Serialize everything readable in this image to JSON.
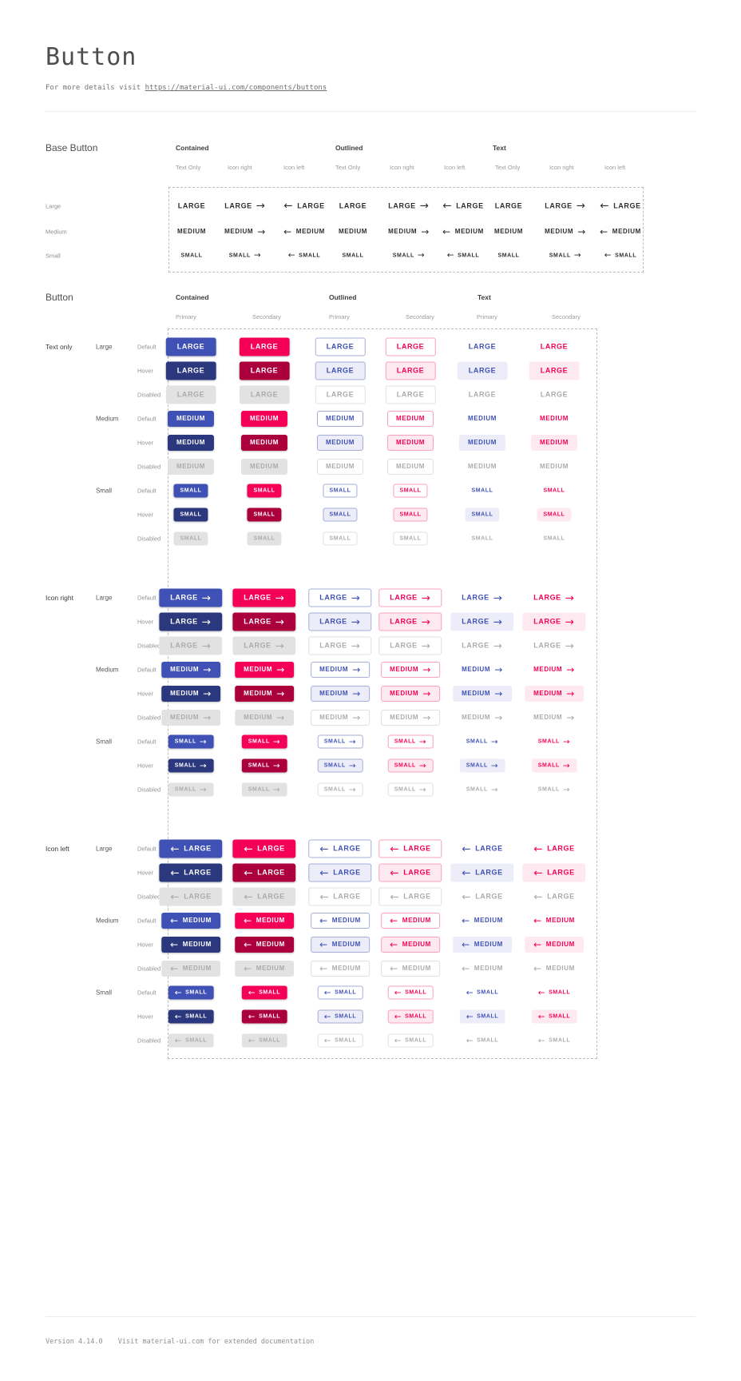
{
  "page": {
    "title": "Button",
    "subtitle_prefix": "For more details visit ",
    "subtitle_link": "https://material-ui.com/components/buttons",
    "footer": {
      "version": "Version 4.14.0",
      "note": "Visit material-ui.com for extended documentation"
    }
  },
  "colors": {
    "primary": "#3f51b5",
    "primary_hover": "#2c387e",
    "primary_tint": "#ecedf8",
    "primary_border": "#a5add8",
    "secondary": "#f50057",
    "secondary_hover": "#ab003c",
    "secondary_tint": "#fee9f0",
    "secondary_border": "#f8a0bd",
    "disabled_bg": "#e2e2e2",
    "disabled_text": "#ababab",
    "disabled_border": "#e0e0e0",
    "base_text": "#2f2f2f",
    "contained_text": "#ffffff"
  },
  "icons": {
    "arrow_right": "→",
    "arrow_left": "←"
  },
  "base_section": {
    "title": "Base Button",
    "groups": [
      "Contained",
      "Outlined",
      "Text"
    ],
    "icon_modes": [
      "Text Only",
      "Icon right",
      "Icon left"
    ],
    "sizes": [
      {
        "label": "Large",
        "button_text": "LARGE"
      },
      {
        "label": "Medium",
        "button_text": "MEDIUM"
      },
      {
        "label": "Small",
        "button_text": "SMALL"
      }
    ]
  },
  "button_section": {
    "title": "Button",
    "groups": [
      "Contained",
      "Outlined",
      "Text"
    ],
    "color_variants": [
      "Primary",
      "Secondary"
    ],
    "icon_groups": [
      {
        "label": "Text only",
        "mode": "none"
      },
      {
        "label": "Icon right",
        "mode": "right"
      },
      {
        "label": "Icon left",
        "mode": "left"
      }
    ],
    "sizes": [
      {
        "label": "Large",
        "button_text": "LARGE"
      },
      {
        "label": "Medium",
        "button_text": "MEDIUM"
      },
      {
        "label": "Small",
        "button_text": "SMALL"
      }
    ],
    "states": [
      "Default",
      "Hover",
      "Disabled"
    ]
  }
}
